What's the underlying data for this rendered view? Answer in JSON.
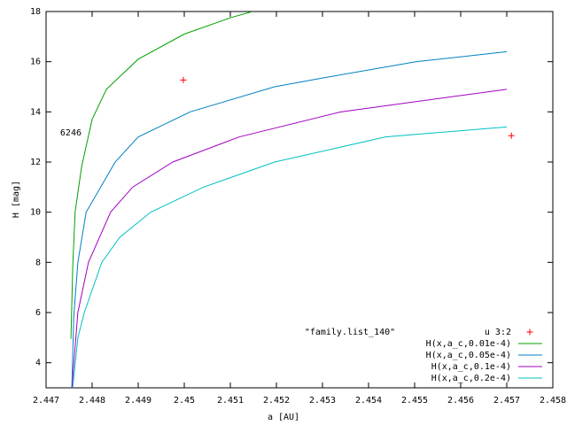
{
  "chart_data": {
    "type": "line",
    "xlabel": "a [AU]",
    "ylabel": "H [mag]",
    "key_title": "\"family.list_140\"",
    "annotation": "6246",
    "xlim": [
      2.447,
      2.458
    ],
    "xticks": [
      2.447,
      2.448,
      2.449,
      2.45,
      2.451,
      2.452,
      2.453,
      2.454,
      2.455,
      2.456,
      2.457,
      2.458
    ],
    "ylim": [
      3,
      18
    ],
    "yticks": [
      4,
      6,
      8,
      10,
      12,
      14,
      16,
      18
    ],
    "legend": "bottom-right",
    "series": [
      {
        "name": "u 3:2",
        "style": "points",
        "color": "#ff0000",
        "x": [
          2.44998,
          2.4571
        ],
        "values": [
          15.27,
          13.05
        ]
      },
      {
        "name": "H(x,a_c,0.01e-4)",
        "style": "lines",
        "color": "#00a000",
        "x": [
          2.44754,
          2.44758,
          2.44763,
          2.44777,
          2.448,
          2.44831,
          2.449,
          2.45,
          2.451,
          2.45148
        ],
        "values": [
          4.95,
          7.9,
          10,
          11.8,
          13.7,
          14.9,
          16.1,
          17.1,
          17.75,
          18
        ]
      },
      {
        "name": "H(x,a_c,0.05e-4)",
        "style": "lines",
        "color": "#0080c0",
        "x": [
          2.44756,
          2.4476,
          2.44769,
          2.44787,
          2.4485,
          2.449,
          2.45013,
          2.45196,
          2.453,
          2.45504,
          2.457
        ],
        "values": [
          3,
          5.8,
          8,
          10,
          12,
          13,
          14,
          15,
          15.35,
          16,
          16.4
        ]
      },
      {
        "name": "H(x,a_c,0.1e-4)",
        "style": "lines",
        "color": "#a000c0",
        "x": [
          2.44756,
          2.44769,
          2.44792,
          2.4484,
          2.44888,
          2.44975,
          2.45119,
          2.4534,
          2.457
        ],
        "values": [
          3,
          6,
          8,
          10,
          11,
          12,
          13,
          14,
          14.9
        ]
      },
      {
        "name": "H(x,a_c,0.2e-4)",
        "style": "lines",
        "color": "#00c0c0",
        "x": [
          2.44758,
          2.44769,
          2.44783,
          2.44821,
          2.4486,
          2.44927,
          2.45042,
          2.45196,
          2.45437,
          2.457
        ],
        "values": [
          3,
          5,
          6,
          8,
          9,
          10,
          11,
          12,
          13,
          13.4
        ]
      }
    ]
  }
}
